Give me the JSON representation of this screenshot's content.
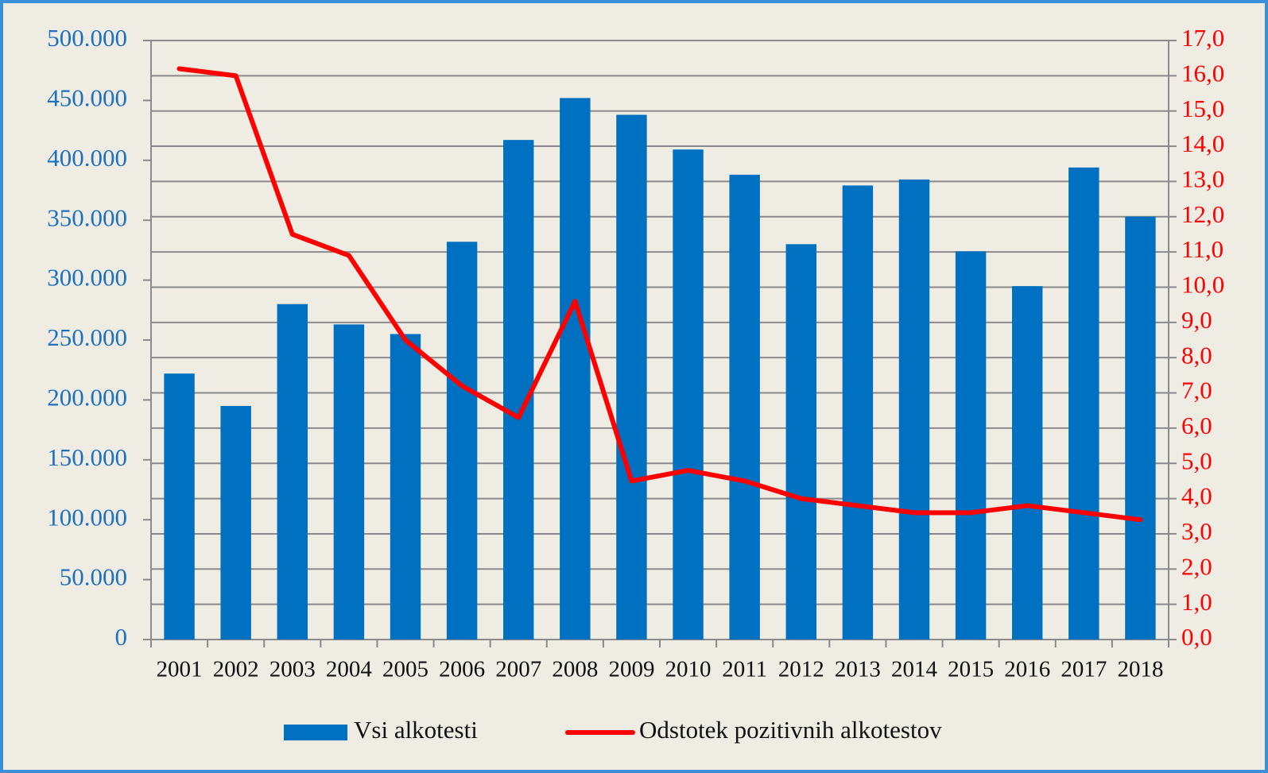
{
  "chart_data": {
    "type": "bar_line",
    "categories": [
      "2001",
      "2002",
      "2003",
      "2004",
      "2005",
      "2006",
      "2007",
      "2008",
      "2009",
      "2010",
      "2011",
      "2012",
      "2013",
      "2014",
      "2015",
      "2016",
      "2017",
      "2018"
    ],
    "series": [
      {
        "name": "Vsi alkotesti",
        "type": "bar",
        "color": "#0070c0",
        "axis": "y",
        "values": [
          222000,
          195000,
          280000,
          263000,
          255000,
          332000,
          417000,
          452000,
          438000,
          409000,
          388000,
          330000,
          379000,
          384000,
          324000,
          295000,
          394000,
          353000
        ]
      },
      {
        "name": "Odstotek pozitivnih alkotestov",
        "type": "line",
        "color": "#ff0000",
        "axis": "y2",
        "values": [
          16.2,
          16.0,
          11.5,
          10.9,
          8.5,
          7.2,
          6.3,
          9.6,
          4.5,
          4.8,
          4.5,
          4.0,
          3.8,
          3.6,
          3.6,
          3.8,
          3.6,
          3.4
        ]
      }
    ],
    "ylim": [
      0,
      500000
    ],
    "yticks": [
      0,
      {
        "value": 50000,
        "label": "50.000"
      },
      {
        "value": 100000,
        "label": "100.000"
      },
      {
        "value": 150000,
        "label": "150.000"
      },
      {
        "value": 200000,
        "label": "200.000"
      },
      {
        "value": 250000,
        "label": "250.000"
      },
      {
        "value": 300000,
        "label": "300.000"
      },
      {
        "value": 350000,
        "label": "350.000"
      },
      {
        "value": 400000,
        "label": "400.000"
      },
      {
        "value": 450000,
        "label": "450.000"
      },
      {
        "value": 500000,
        "label": "500.000"
      }
    ],
    "y2lim": [
      0,
      17
    ],
    "y2ticks": [
      {
        "value": 0,
        "label": "0,0"
      },
      {
        "value": 1,
        "label": "1,0"
      },
      {
        "value": 2,
        "label": "2,0"
      },
      {
        "value": 3,
        "label": "3,0"
      },
      {
        "value": 4,
        "label": "4,0"
      },
      {
        "value": 5,
        "label": "5,0"
      },
      {
        "value": 6,
        "label": "6,0"
      },
      {
        "value": 7,
        "label": "7,0"
      },
      {
        "value": 8,
        "label": "8,0"
      },
      {
        "value": 9,
        "label": "9,0"
      },
      {
        "value": 10,
        "label": "10,0"
      },
      {
        "value": 11,
        "label": "11,0"
      },
      {
        "value": 12,
        "label": "12,0"
      },
      {
        "value": 13,
        "label": "13,0"
      },
      {
        "value": 14,
        "label": "14,0"
      },
      {
        "value": 15,
        "label": "15,0"
      },
      {
        "value": 16,
        "label": "16,0"
      },
      {
        "value": 17,
        "label": "17,0"
      }
    ],
    "grid": true,
    "legend": "bottom"
  }
}
